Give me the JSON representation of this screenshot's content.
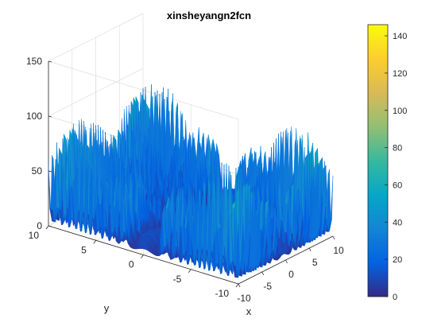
{
  "chart_data": {
    "type": "surface",
    "title": "xinsheyangn2fcn",
    "xlabel": "x",
    "ylabel": "y",
    "zlabel": "",
    "xlim": [
      -10,
      10
    ],
    "ylim": [
      -10,
      10
    ],
    "zlim": [
      0,
      150
    ],
    "xticks": [
      "-10",
      "-5",
      "0",
      "5",
      "10"
    ],
    "yticks": [
      "-10",
      "-5",
      "0",
      "5",
      "10"
    ],
    "zticks": [
      "0",
      "50",
      "100",
      "150"
    ],
    "function": "(sum(|x_i|)) * exp(-sum(sin(x_i^2)))",
    "grid": true,
    "colormap": "parula",
    "colorbar": {
      "range": [
        0,
        146
      ],
      "ticks": [
        "0",
        "20",
        "40",
        "60",
        "80",
        "100",
        "120",
        "140"
      ],
      "position": "right"
    },
    "colors": {
      "parula_stops": [
        "#352a87",
        "#0363e1",
        "#1485d4",
        "#06a7c6",
        "#38b99e",
        "#92bf73",
        "#d9ba56",
        "#fcce2e",
        "#f9fb0e"
      ]
    }
  }
}
